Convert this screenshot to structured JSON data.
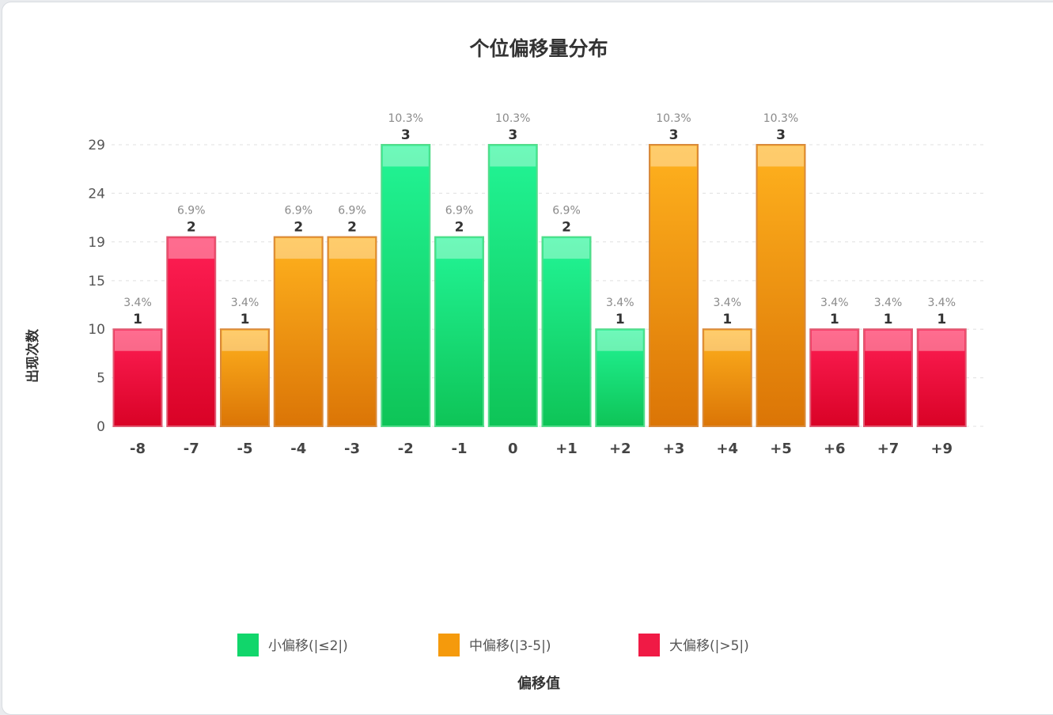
{
  "chart_data": {
    "type": "bar",
    "title": "个位偏移量分布",
    "xlabel": "偏移值",
    "ylabel": "出现次数",
    "y_ticks": [
      0,
      5,
      10,
      15,
      19,
      24,
      29
    ],
    "ylim": [
      0,
      29
    ],
    "grid": true,
    "legend_position": "bottom",
    "categories": [
      "-8",
      "-7",
      "-5",
      "-4",
      "-3",
      "-2",
      "-1",
      "0",
      "+1",
      "+2",
      "+3",
      "+4",
      "+5",
      "+6",
      "+7",
      "+9"
    ],
    "counts": [
      1,
      2,
      1,
      2,
      2,
      3,
      2,
      3,
      2,
      1,
      3,
      1,
      3,
      1,
      1,
      1
    ],
    "bar_heights": [
      10,
      19.5,
      10,
      19.5,
      19.5,
      29,
      19.5,
      29,
      19.5,
      10,
      29,
      10,
      29,
      10,
      10,
      10
    ],
    "percent_labels": [
      "3.4%",
      "6.9%",
      "3.4%",
      "6.9%",
      "6.9%",
      "10.3%",
      "6.9%",
      "10.3%",
      "6.9%",
      "3.4%",
      "10.3%",
      "3.4%",
      "10.3%",
      "3.4%",
      "3.4%",
      "3.4%"
    ],
    "groups": [
      "large",
      "large",
      "medium",
      "medium",
      "medium",
      "small",
      "small",
      "small",
      "small",
      "small",
      "medium",
      "medium",
      "medium",
      "large",
      "large",
      "large"
    ],
    "legend": [
      {
        "key": "small",
        "label": "小偏移(|≤2|)"
      },
      {
        "key": "medium",
        "label": "中偏移(|3-5|)"
      },
      {
        "key": "large",
        "label": "大偏移(|>5|)"
      }
    ],
    "colors": {
      "small": {
        "top": "#22f596",
        "bottom": "#0ec457",
        "stroke": "#54dc8b",
        "legend": "#11d66b"
      },
      "medium": {
        "top": "#ffb21e",
        "bottom": "#db7506",
        "stroke": "#d98a3b",
        "legend": "#f59a0c"
      },
      "large": {
        "top": "#ff1f55",
        "bottom": "#d90226",
        "stroke": "#e05a72",
        "legend": "#f01a45"
      }
    }
  }
}
